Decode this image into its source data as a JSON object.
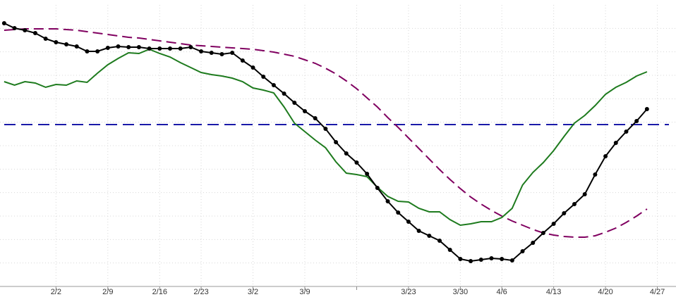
{
  "chart_data": {
    "type": "line",
    "x": [
      0,
      1,
      2,
      3,
      4,
      5,
      6,
      7,
      8,
      9,
      10,
      11,
      12,
      13,
      14,
      15,
      16,
      17,
      18,
      19,
      20,
      21,
      22,
      23,
      24,
      25,
      26,
      27,
      28,
      29,
      30,
      31,
      32,
      33,
      34,
      35,
      36,
      37,
      38,
      39,
      40,
      41,
      42,
      43,
      44,
      45,
      46,
      47,
      48,
      49,
      50,
      51,
      52,
      53,
      54,
      55,
      56,
      57,
      58,
      59,
      60,
      61,
      62
    ],
    "xlim": [
      -0.4,
      64.8
    ],
    "xticks": [
      {
        "value": 5,
        "label": "2/2"
      },
      {
        "value": 10,
        "label": "2/9"
      },
      {
        "value": 15,
        "label": "2/16"
      },
      {
        "value": 19,
        "label": "2/23"
      },
      {
        "value": 24,
        "label": "3/2"
      },
      {
        "value": 29,
        "label": "3/9"
      },
      {
        "value": 34,
        "label": null
      },
      {
        "value": 39,
        "label": "3/23"
      },
      {
        "value": 44,
        "label": "3/30"
      },
      {
        "value": 48,
        "label": "4/6"
      },
      {
        "value": 53,
        "label": "4/13"
      },
      {
        "value": 58,
        "label": "4/20"
      },
      {
        "value": 63,
        "label": "4/27"
      }
    ],
    "ylim": [
      0,
      12
    ],
    "yticks": [
      1,
      2,
      3,
      4,
      5,
      6,
      7,
      8,
      9,
      10,
      11
    ],
    "grid": true,
    "series": [
      {
        "color": "#800060",
        "dash": true,
        "markers": false,
        "values": [
          10.92,
          10.95,
          10.98,
          10.98,
          10.98,
          10.98,
          10.95,
          10.92,
          10.86,
          10.8,
          10.74,
          10.68,
          10.62,
          10.59,
          10.53,
          10.47,
          10.41,
          10.35,
          10.29,
          10.26,
          10.23,
          10.2,
          10.17,
          10.14,
          10.11,
          10.05,
          9.99,
          9.9,
          9.81,
          9.66,
          9.51,
          9.3,
          9.06,
          8.76,
          8.43,
          8.04,
          7.65,
          7.2,
          6.78,
          6.33,
          5.88,
          5.43,
          4.98,
          4.56,
          4.17,
          3.81,
          3.51,
          3.24,
          3.0,
          2.79,
          2.61,
          2.43,
          2.28,
          2.19,
          2.13,
          2.1,
          2.1,
          2.16,
          2.31,
          2.49,
          2.73,
          3.0,
          3.3
        ]
      },
      {
        "color": "#1e7b1e",
        "dash": false,
        "markers": false,
        "values": [
          8.73,
          8.58,
          8.73,
          8.67,
          8.49,
          8.61,
          8.58,
          8.76,
          8.7,
          9.09,
          9.45,
          9.72,
          9.96,
          9.93,
          10.11,
          9.93,
          9.78,
          9.54,
          9.33,
          9.12,
          9.03,
          8.97,
          8.88,
          8.73,
          8.46,
          8.37,
          8.25,
          7.65,
          6.96,
          6.6,
          6.24,
          5.91,
          5.31,
          4.83,
          4.77,
          4.68,
          4.23,
          3.84,
          3.63,
          3.6,
          3.33,
          3.18,
          3.18,
          2.85,
          2.61,
          2.67,
          2.76,
          2.76,
          2.94,
          3.33,
          4.32,
          4.86,
          5.28,
          5.79,
          6.39,
          6.96,
          7.29,
          7.71,
          8.19,
          8.49,
          8.7,
          8.97,
          9.15
        ]
      },
      {
        "color": "#000000",
        "dash": false,
        "markers": true,
        "values": [
          11.22,
          11.01,
          10.92,
          10.8,
          10.56,
          10.41,
          10.32,
          10.23,
          10.02,
          10.02,
          10.17,
          10.23,
          10.2,
          10.2,
          10.14,
          10.14,
          10.14,
          10.14,
          10.2,
          10.02,
          9.96,
          9.9,
          9.96,
          9.63,
          9.33,
          8.94,
          8.58,
          8.22,
          7.83,
          7.47,
          7.17,
          6.72,
          6.15,
          5.67,
          5.28,
          4.8,
          4.2,
          3.63,
          3.15,
          2.76,
          2.37,
          2.16,
          1.95,
          1.56,
          1.17,
          1.08,
          1.14,
          1.2,
          1.17,
          1.11,
          1.5,
          1.86,
          2.28,
          2.67,
          3.12,
          3.51,
          3.93,
          4.77,
          5.55,
          6.12,
          6.6,
          7.05,
          7.56
        ]
      }
    ],
    "hlines": [
      {
        "value": 6.9,
        "color": "#1a1aa8",
        "dash": true
      }
    ]
  }
}
